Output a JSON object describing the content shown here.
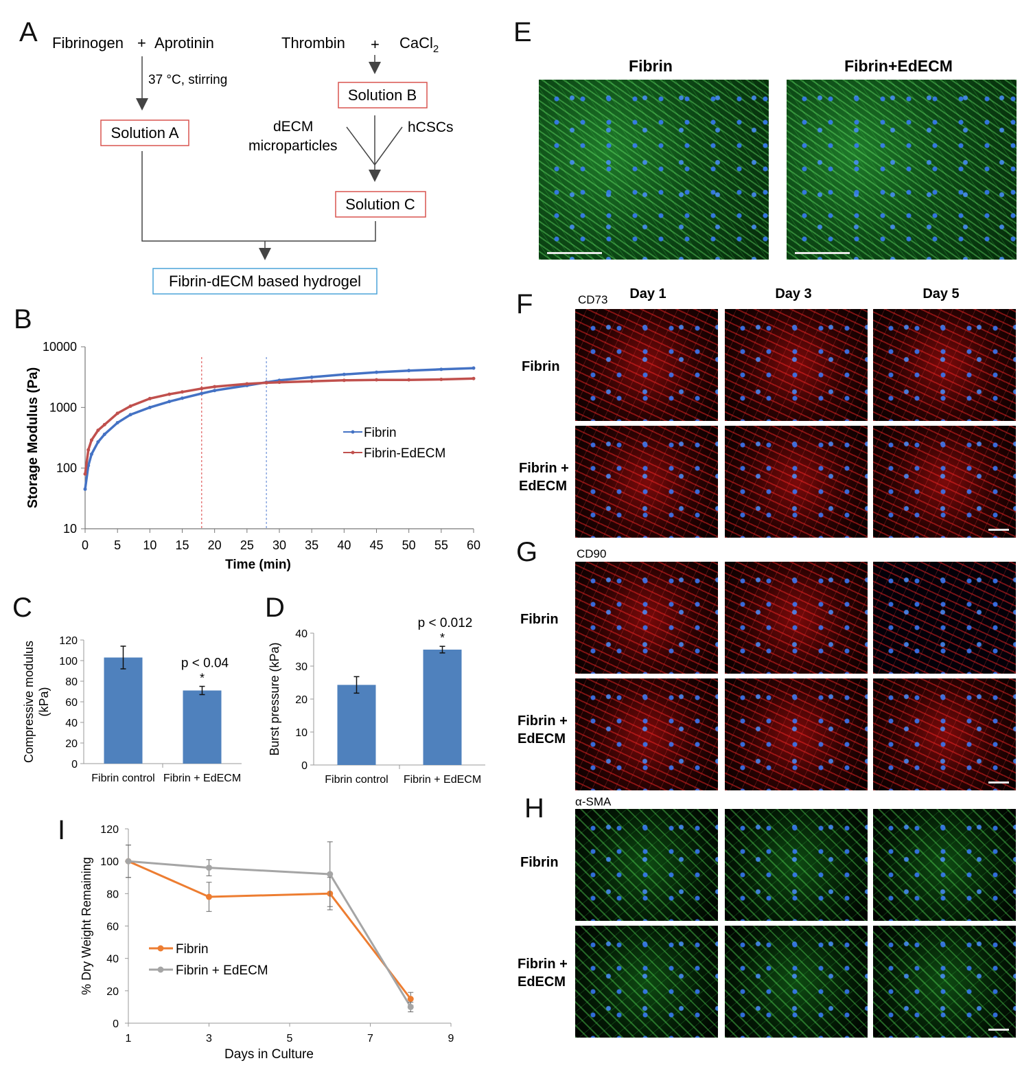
{
  "panels": {
    "A": "A",
    "B": "B",
    "C": "C",
    "D": "D",
    "E": "E",
    "F": "F",
    "G": "G",
    "H": "H",
    "I": "I"
  },
  "flowchart": {
    "fibrinogen": "Fibrinogen",
    "plus": "+",
    "aprotinin": "Aprotinin",
    "thrombin": "Thrombin",
    "cacl": "CaCl",
    "cacl_sub": "2",
    "condition": "37 °C, stirring",
    "solution_a": "Solution A",
    "solution_b": "Solution B",
    "solution_c": "Solution C",
    "decm": "dECM",
    "microparticles": "microparticles",
    "hcscs": "hCSCs",
    "final": "Fibrin-dECM based hydrogel"
  },
  "micrographs": {
    "e_titles": [
      "Fibrin",
      "Fibrin+EdECM"
    ],
    "day_headers": [
      "Day 1",
      "Day 3",
      "Day 5"
    ],
    "markers": [
      "CD73",
      "CD90",
      "α-SMA"
    ],
    "row_fibrin": "Fibrin",
    "row_fibrin_edecm_1": "Fibrin +",
    "row_fibrin_edecm_2": "EdECM"
  },
  "chart_data": [
    {
      "panel": "B",
      "type": "line",
      "xlabel": "Time (min)",
      "ylabel": "Storage Modulus (Pa)",
      "xlim": [
        0,
        60
      ],
      "ylim": [
        10,
        10000
      ],
      "yscale": "log",
      "xticks": [
        0,
        5,
        10,
        15,
        20,
        25,
        30,
        35,
        40,
        45,
        50,
        55,
        60
      ],
      "yticks": [
        10,
        100,
        1000,
        10000
      ],
      "legend_position": "right",
      "vlines": [
        {
          "x": 18,
          "color": "#e05a5a"
        },
        {
          "x": 28,
          "color": "#6a8fd8"
        }
      ],
      "series": [
        {
          "name": "Fibrin",
          "color": "#4472c4",
          "x": [
            0,
            0.5,
            1,
            2,
            3,
            5,
            7,
            10,
            13,
            15,
            18,
            20,
            25,
            28,
            30,
            35,
            40,
            45,
            50,
            55,
            60
          ],
          "y": [
            45,
            110,
            170,
            270,
            360,
            560,
            760,
            1000,
            1250,
            1420,
            1700,
            1900,
            2300,
            2600,
            2800,
            3150,
            3500,
            3800,
            4050,
            4250,
            4450
          ]
        },
        {
          "name": "Fibrin-EdECM",
          "color": "#c0504d",
          "x": [
            0,
            0.5,
            1,
            2,
            3,
            5,
            7,
            10,
            13,
            15,
            18,
            20,
            25,
            28,
            30,
            35,
            40,
            45,
            50,
            55,
            60
          ],
          "y": [
            80,
            200,
            290,
            420,
            520,
            800,
            1050,
            1400,
            1650,
            1800,
            2050,
            2200,
            2450,
            2550,
            2600,
            2700,
            2800,
            2850,
            2850,
            2900,
            3000
          ]
        }
      ]
    },
    {
      "panel": "C",
      "type": "bar",
      "categories": [
        "Fibrin control",
        "Fibrin + EdECM"
      ],
      "values": [
        103,
        71
      ],
      "errors": [
        11,
        4
      ],
      "ylabel": "Compressive modulus (kPa)",
      "ylabel_lines": [
        "Compressive modulus",
        "(kPa)"
      ],
      "ylim": [
        0,
        120
      ],
      "yticks": [
        0,
        20,
        40,
        60,
        80,
        100,
        120
      ],
      "annotation": "p < 0.04",
      "significance": "*",
      "color": "#4f81bd"
    },
    {
      "panel": "D",
      "type": "bar",
      "categories": [
        "Fibrin control",
        "Fibrin + EdECM"
      ],
      "values": [
        24.3,
        35
      ],
      "errors": [
        2.5,
        1
      ],
      "ylabel": "Burst pressure (kPa)",
      "ylim": [
        0,
        40
      ],
      "yticks": [
        0,
        10,
        20,
        30,
        40
      ],
      "annotation": "p < 0.012",
      "significance": "*",
      "color": "#4f81bd"
    },
    {
      "panel": "I",
      "type": "line",
      "xlabel": "Days in Culture",
      "ylabel": "% Dry Weight Remaining",
      "xlim": [
        1,
        9
      ],
      "ylim": [
        0,
        120
      ],
      "xticks": [
        1,
        3,
        5,
        7,
        9
      ],
      "yticks": [
        0,
        20,
        40,
        60,
        80,
        100,
        120
      ],
      "legend_position": "bottom-left",
      "series": [
        {
          "name": "Fibrin",
          "color": "#ed7d31",
          "x": [
            1,
            3,
            6,
            8
          ],
          "y": [
            100,
            78,
            80,
            15
          ],
          "err": [
            10,
            9,
            10,
            4
          ]
        },
        {
          "name": "Fibrin + EdECM",
          "color": "#a5a5a5",
          "x": [
            1,
            3,
            6,
            8
          ],
          "y": [
            100,
            96,
            92,
            10
          ],
          "err": [
            10,
            5,
            20,
            3
          ]
        }
      ]
    }
  ]
}
